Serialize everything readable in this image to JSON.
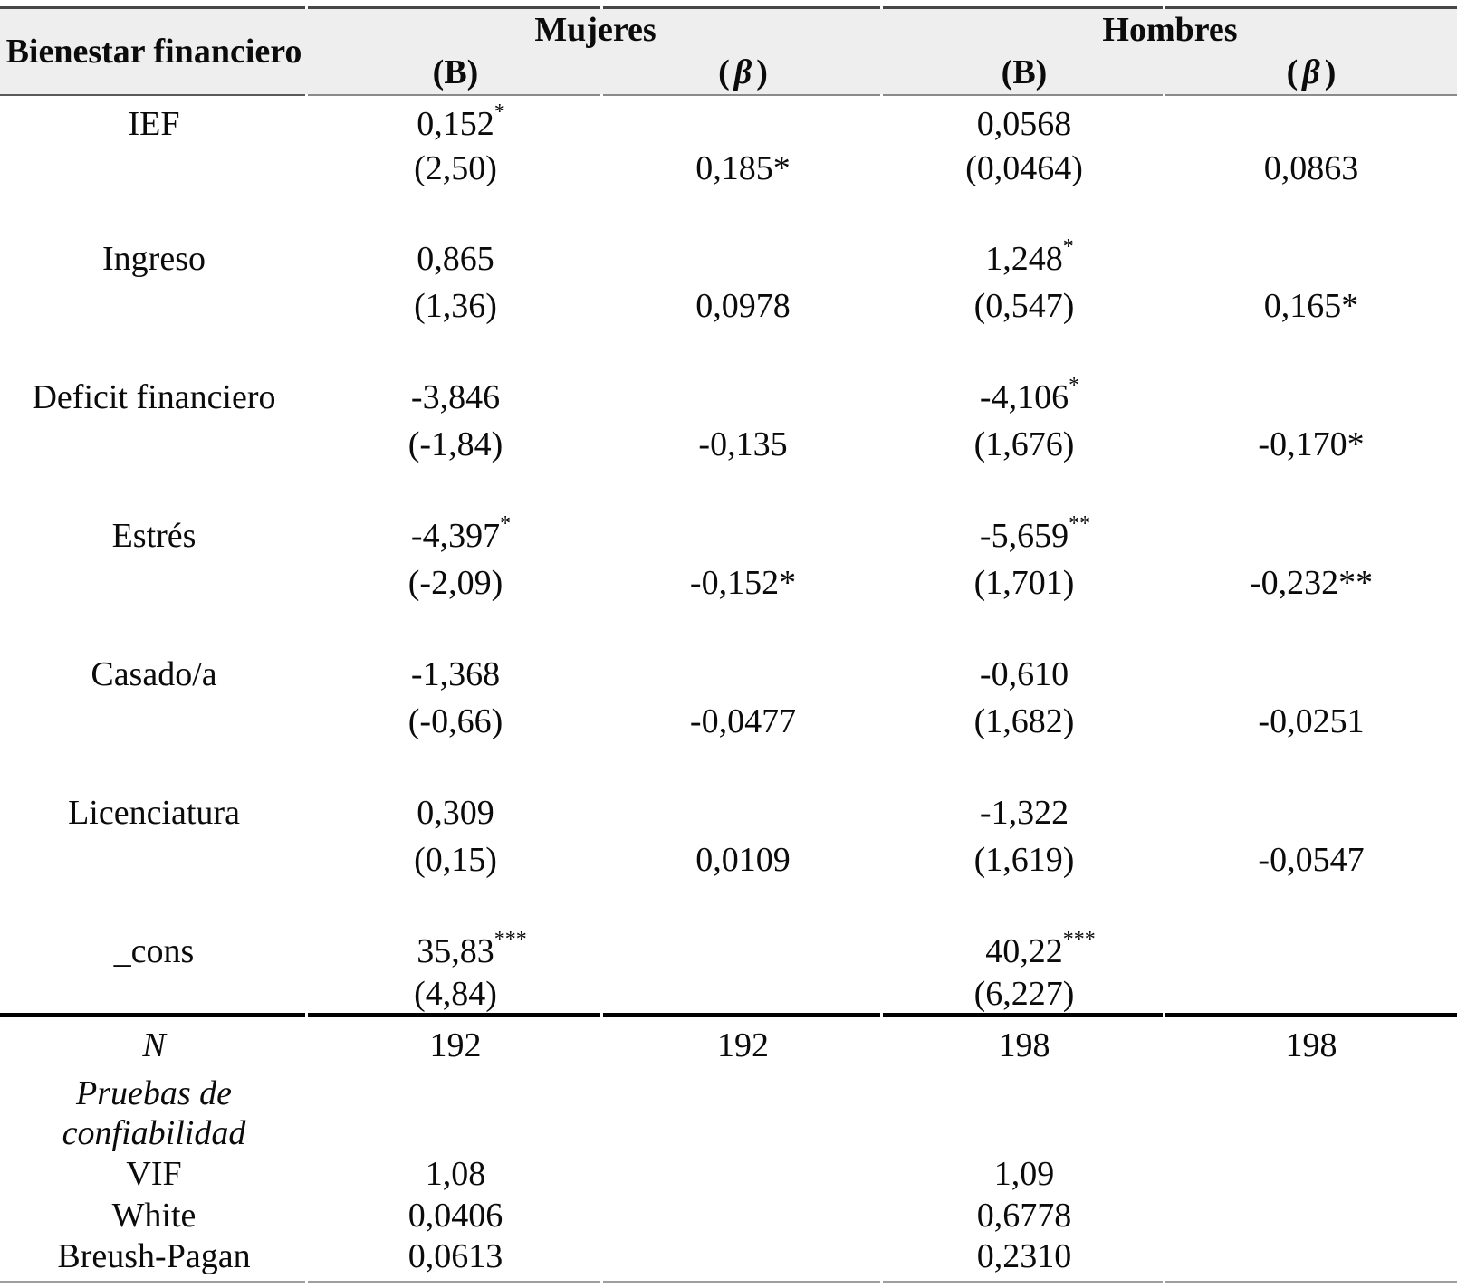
{
  "colors": {
    "header_background": "#eeeeee",
    "rule_top": "#474747",
    "rule_header": "#8a8a8a",
    "rule_thick": "#000000",
    "rule_bottom": "#9e9e9e",
    "text": "#0b0b0b"
  },
  "header": {
    "row_title": "Bienestar financiero",
    "group_women": "Mujeres",
    "group_men": "Hombres",
    "sub_b": "(B)",
    "sub_beta_open": "(",
    "sub_beta_symbol": "β",
    "sub_beta_close": ")"
  },
  "rows": [
    {
      "label": "IEF",
      "m_b": "0,152",
      "m_b_stars": "*",
      "m_t": "(2,50)",
      "m_beta": "0,185*",
      "h_b": "0,0568",
      "h_b_stars": "",
      "h_t": "(0,0464)",
      "h_beta": "0,0863"
    },
    {
      "label": "Ingreso",
      "m_b": "0,865",
      "m_b_stars": "",
      "m_t": "(1,36)",
      "m_beta": "0,0978",
      "h_b": "1,248",
      "h_b_stars": "*",
      "h_t": "(0,547)",
      "h_beta": "0,165*"
    },
    {
      "label": "Deficit financiero",
      "m_b": "-3,846",
      "m_b_stars": "",
      "m_t": "(-1,84)",
      "m_beta": "-0,135",
      "h_b": "-4,106",
      "h_b_stars": "*",
      "h_t": "(1,676)",
      "h_beta": "-0,170*"
    },
    {
      "label": "Estrés",
      "m_b": "-4,397",
      "m_b_stars": "*",
      "m_t": "(-2,09)",
      "m_beta": "-0,152*",
      "h_b": "-5,659",
      "h_b_stars": "**",
      "h_t": "(1,701)",
      "h_beta": "-0,232**"
    },
    {
      "label": "Casado/a",
      "m_b": "-1,368",
      "m_b_stars": "",
      "m_t": "(-0,66)",
      "m_beta": "-0,0477",
      "h_b": "-0,610",
      "h_b_stars": "",
      "h_t": "(1,682)",
      "h_beta": "-0,0251"
    },
    {
      "label": "Licenciatura",
      "m_b": "0,309",
      "m_b_stars": "",
      "m_t": "(0,15)",
      "m_beta": "0,0109",
      "h_b": "-1,322",
      "h_b_stars": "",
      "h_t": "(1,619)",
      "h_beta": "-0,0547"
    },
    {
      "label": "_cons",
      "m_b": "35,83",
      "m_b_stars": "***",
      "m_t": "(4,84)",
      "m_beta": "",
      "h_b": "40,22",
      "h_b_stars": "***",
      "h_t": "(6,227)",
      "h_beta": ""
    }
  ],
  "footer": {
    "n_label": "N",
    "n_values": {
      "m_b": "192",
      "m_beta": "192",
      "h_b": "198",
      "h_beta": "198"
    },
    "reliability_line1": "Pruebas de",
    "reliability_line2": "confiabilidad",
    "vif_label": "VIF",
    "vif_m": "1,08",
    "vif_h": "1,09",
    "white_label": "White",
    "white_m": "0,0406",
    "white_h": "0,6778",
    "breush_label": "Breush-Pagan",
    "breush_m": "0,0613",
    "breush_h": "0,2310"
  }
}
